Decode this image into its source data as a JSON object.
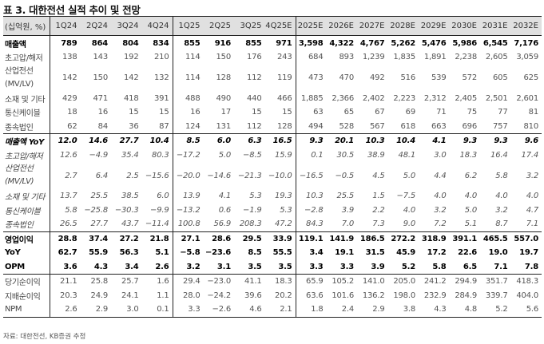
{
  "title": "표 3. 대한전선 실적 추이 및 전망",
  "header": {
    "unit_label": "(십억원, %)",
    "columns": [
      "1Q24",
      "2Q24",
      "3Q24",
      "4Q24",
      "1Q25",
      "2Q25",
      "3Q25",
      "4Q25E",
      "2025E",
      "2026E",
      "2027E",
      "2028E",
      "2029E",
      "2030E",
      "2031E",
      "2032E"
    ]
  },
  "rows": {
    "revenue": {
      "label": "매출액",
      "values": [
        "789",
        "864",
        "804",
        "834",
        "855",
        "916",
        "855",
        "971",
        "3,598",
        "4,322",
        "4,767",
        "5,262",
        "5,476",
        "5,986",
        "6,545",
        "7,176"
      ]
    },
    "ehv": {
      "label": "초고압/해저",
      "values": [
        "138",
        "143",
        "192",
        "210",
        "114",
        "150",
        "176",
        "243",
        "684",
        "893",
        "1,239",
        "1,835",
        "1,891",
        "2,238",
        "2,605",
        "3,059"
      ]
    },
    "industrial": {
      "label_line1": "산업전선",
      "label_line2": "(MV/LV)",
      "values": [
        "142",
        "150",
        "142",
        "132",
        "114",
        "128",
        "112",
        "119",
        "473",
        "470",
        "492",
        "516",
        "539",
        "572",
        "605",
        "625"
      ]
    },
    "materials": {
      "label": "소재 및 기타",
      "values": [
        "429",
        "471",
        "418",
        "391",
        "488",
        "490",
        "440",
        "466",
        "1,885",
        "2,366",
        "2,402",
        "2,223",
        "2,312",
        "2,405",
        "2,501",
        "2,601"
      ]
    },
    "telecom": {
      "label": "통신케이블",
      "values": [
        "18",
        "16",
        "15",
        "15",
        "16",
        "17",
        "15",
        "15",
        "63",
        "65",
        "67",
        "69",
        "71",
        "75",
        "77",
        "81"
      ]
    },
    "subsidiaries": {
      "label": "종속법인",
      "values": [
        "62",
        "84",
        "36",
        "87",
        "124",
        "131",
        "112",
        "128",
        "494",
        "528",
        "567",
        "618",
        "663",
        "696",
        "757",
        "810"
      ]
    },
    "revenue_yoy": {
      "label": "매출액 YoY",
      "values": [
        "12.0",
        "14.6",
        "27.7",
        "10.4",
        "8.5",
        "6.0",
        "6.3",
        "16.5",
        "9.3",
        "20.1",
        "10.3",
        "10.4",
        "4.1",
        "9.3",
        "9.3",
        "9.6"
      ]
    },
    "ehv_yoy": {
      "label": "초고압/해저",
      "values": [
        "12.6",
        "-4.9",
        "35.4",
        "80.3",
        "-17.2",
        "5.0",
        "-8.5",
        "15.9",
        "0.1",
        "30.5",
        "38.9",
        "48.1",
        "3.0",
        "18.3",
        "16.4",
        "17.4"
      ]
    },
    "industrial_yoy": {
      "label_line1": "산업전선",
      "label_line2": "(MV/LV)",
      "values": [
        "2.7",
        "6.4",
        "2.5",
        "-15.6",
        "-20.0",
        "-14.6",
        "-21.3",
        "-10.0",
        "-16.5",
        "-0.5",
        "4.5",
        "5.0",
        "4.4",
        "6.2",
        "5.8",
        "3.2"
      ]
    },
    "materials_yoy": {
      "label": "소재 및 기타",
      "values": [
        "13.7",
        "25.5",
        "38.5",
        "6.0",
        "13.9",
        "4.1",
        "5.3",
        "19.3",
        "10.3",
        "25.5",
        "1.5",
        "-7.5",
        "4.0",
        "4.0",
        "4.0",
        "4.0"
      ]
    },
    "telecom_yoy": {
      "label": "통신케이블",
      "values": [
        "5.8",
        "-25.8",
        "-30.3",
        "-9.9",
        "-13.2",
        "0.6",
        "-1.9",
        "5.3",
        "-2.8",
        "3.9",
        "2.2",
        "4.0",
        "3.2",
        "5.0",
        "3.2",
        "4.7"
      ]
    },
    "subsidiaries_yoy": {
      "label": "종속법인",
      "values": [
        "26.5",
        "27.7",
        "43.7",
        "-11.4",
        "100.8",
        "56.9",
        "208.3",
        "47.2",
        "84.3",
        "7.0",
        "7.3",
        "9.0",
        "7.2",
        "5.1",
        "8.7",
        "7.1"
      ]
    },
    "op_profit": {
      "label": "영업이익",
      "values": [
        "28.8",
        "37.4",
        "27.2",
        "21.8",
        "27.1",
        "28.6",
        "29.5",
        "33.9",
        "119.1",
        "141.9",
        "186.5",
        "272.2",
        "318.9",
        "391.1",
        "465.5",
        "557.0"
      ]
    },
    "op_yoy": {
      "label": "YoY",
      "values": [
        "62.7",
        "55.9",
        "56.3",
        "5.1",
        "-5.8",
        "-23.6",
        "8.5",
        "55.5",
        "3.4",
        "19.1",
        "31.5",
        "45.9",
        "17.2",
        "22.6",
        "19.0",
        "19.7"
      ]
    },
    "opm": {
      "label": "OPM",
      "values": [
        "3.6",
        "4.3",
        "3.4",
        "2.6",
        "3.2",
        "3.1",
        "3.5",
        "3.5",
        "3.3",
        "3.3",
        "3.9",
        "5.2",
        "5.8",
        "6.5",
        "7.1",
        "7.8"
      ]
    },
    "net_income": {
      "label": "당기순이익",
      "values": [
        "21.1",
        "25.8",
        "25.7",
        "1.6",
        "29.4",
        "-23.0",
        "41.1",
        "18.3",
        "65.9",
        "105.2",
        "141.0",
        "205.0",
        "241.2",
        "294.9",
        "351.7",
        "418.3"
      ]
    },
    "controlling_ni": {
      "label": "지배순이익",
      "values": [
        "20.3",
        "24.9",
        "24.1",
        "1.1",
        "28.0",
        "-24.2",
        "39.6",
        "20.2",
        "63.6",
        "101.6",
        "136.2",
        "198.0",
        "232.9",
        "284.9",
        "339.7",
        "404.0"
      ]
    },
    "npm": {
      "label": "NPM",
      "values": [
        "2.6",
        "2.9",
        "3.0",
        "0.1",
        "3.3",
        "-2.6",
        "4.6",
        "2.1",
        "1.8",
        "2.4",
        "2.9",
        "3.8",
        "4.3",
        "4.8",
        "5.2",
        "5.6"
      ]
    }
  },
  "source": "자료: 대한전선, KB증권 추정"
}
